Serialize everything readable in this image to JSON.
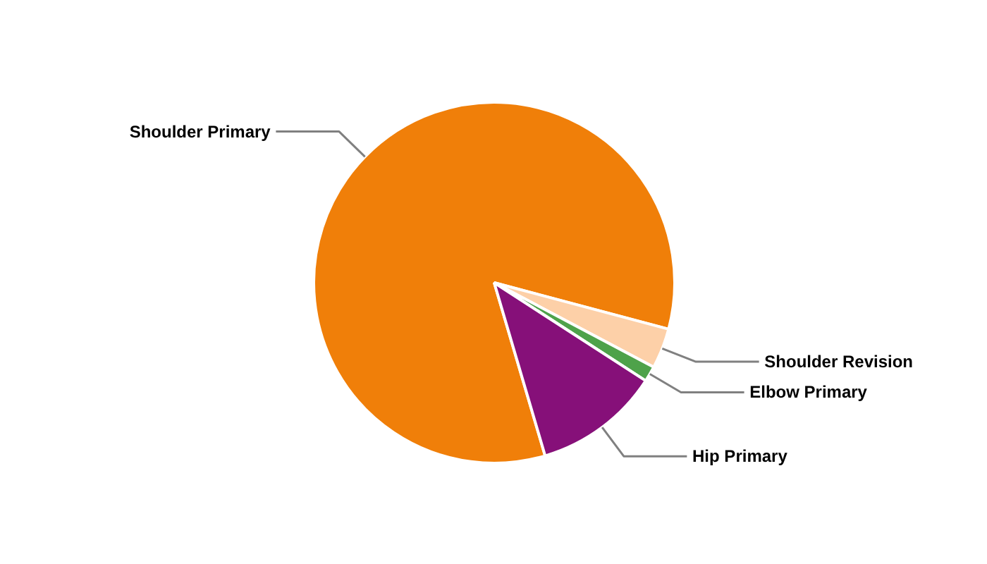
{
  "chart_data": {
    "type": "pie",
    "categories": [
      "Shoulder Primary",
      "Shoulder Revision",
      "Elbow Primary",
      "Hip Primary"
    ],
    "values": [
      83.7,
      3.6,
      1.4,
      11.3
    ],
    "colors": [
      "#f07f09",
      "#fdd0a8",
      "#4ea24a",
      "#861079"
    ]
  }
}
